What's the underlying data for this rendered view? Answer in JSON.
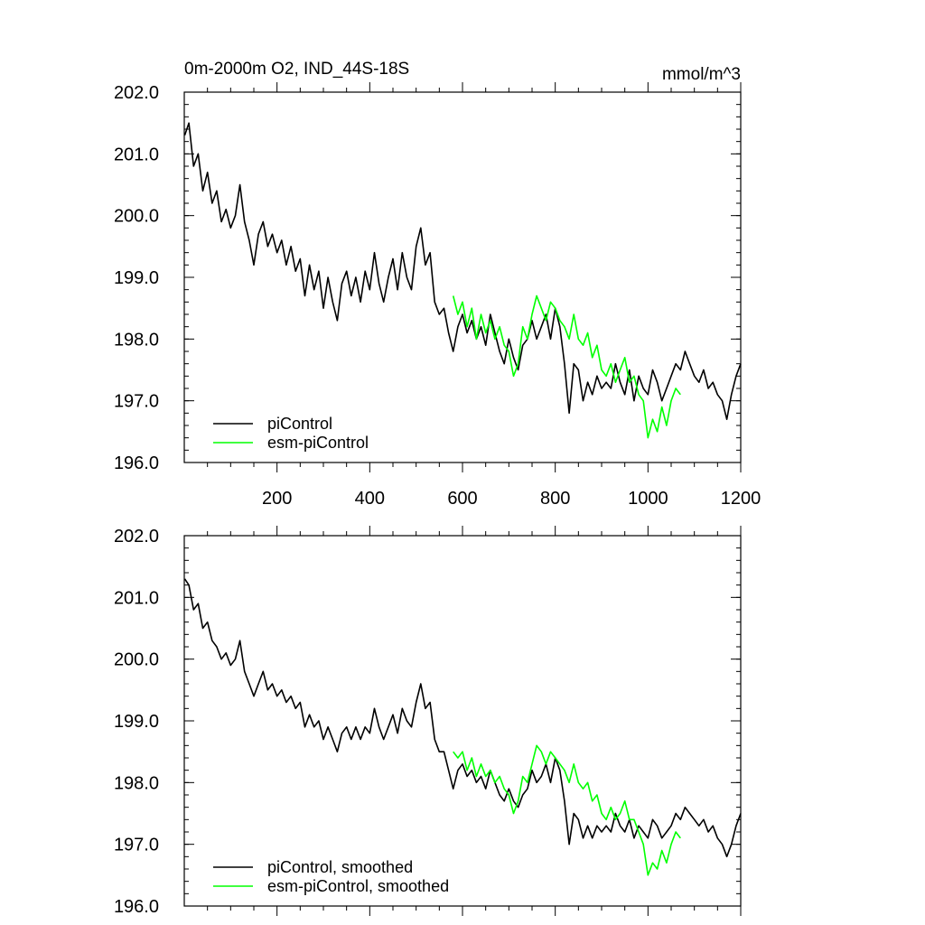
{
  "chart_data": [
    {
      "type": "line",
      "title": "0m-2000m O2, IND_44S-18S",
      "units": "mmol/m^3",
      "xlim": [
        0,
        1200
      ],
      "ylim": [
        196.0,
        202.0
      ],
      "x_ticks": [
        200,
        400,
        600,
        800,
        1000,
        1200
      ],
      "x_tick_labels": [
        "200",
        "400",
        "600",
        "800",
        "1000",
        "1200"
      ],
      "y_ticks": [
        196.0,
        197.0,
        198.0,
        199.0,
        200.0,
        201.0,
        202.0
      ],
      "y_tick_labels": [
        "196.0",
        "197.0",
        "198.0",
        "199.0",
        "200.0",
        "201.0",
        "202.0"
      ],
      "legend_position": "bottom-left",
      "grid": false,
      "series": [
        {
          "name": "piControl",
          "color": "#000000",
          "x": [
            1,
            10,
            20,
            30,
            40,
            50,
            60,
            70,
            80,
            90,
            100,
            110,
            120,
            130,
            140,
            150,
            160,
            170,
            180,
            190,
            200,
            210,
            220,
            230,
            240,
            250,
            260,
            270,
            280,
            290,
            300,
            310,
            320,
            330,
            340,
            350,
            360,
            370,
            380,
            390,
            400,
            410,
            420,
            430,
            440,
            450,
            460,
            470,
            480,
            490,
            500,
            510,
            520,
            530,
            540,
            550,
            560,
            570,
            580,
            590,
            600,
            610,
            620,
            630,
            640,
            650,
            660,
            670,
            680,
            690,
            700,
            710,
            720,
            730,
            740,
            750,
            760,
            770,
            780,
            790,
            800,
            810,
            820,
            830,
            840,
            850,
            860,
            870,
            880,
            890,
            900,
            910,
            920,
            930,
            940,
            950,
            960,
            970,
            980,
            990,
            1000,
            1010,
            1020,
            1030,
            1040,
            1050,
            1060,
            1070,
            1080,
            1090,
            1100,
            1110,
            1120,
            1130,
            1140,
            1150,
            1160,
            1170,
            1180,
            1190,
            1200
          ],
          "values": [
            201.3,
            201.5,
            200.8,
            201.0,
            200.4,
            200.7,
            200.2,
            200.4,
            199.9,
            200.1,
            199.8,
            200.0,
            200.5,
            199.9,
            199.6,
            199.2,
            199.7,
            199.9,
            199.5,
            199.7,
            199.4,
            199.6,
            199.2,
            199.5,
            199.1,
            199.3,
            198.7,
            199.2,
            198.8,
            199.1,
            198.5,
            199.0,
            198.6,
            198.3,
            198.9,
            199.1,
            198.7,
            199.0,
            198.6,
            199.1,
            198.8,
            199.4,
            198.9,
            198.6,
            199.0,
            199.3,
            198.8,
            199.4,
            199.0,
            198.8,
            199.5,
            199.8,
            199.2,
            199.4,
            198.6,
            198.4,
            198.5,
            198.1,
            197.8,
            198.2,
            198.4,
            198.1,
            198.3,
            198.0,
            198.2,
            197.9,
            198.4,
            198.1,
            197.8,
            197.6,
            198.0,
            197.7,
            197.5,
            197.9,
            198.0,
            198.3,
            198.0,
            198.2,
            198.4,
            198.0,
            198.5,
            198.2,
            197.6,
            196.8,
            197.6,
            197.5,
            197.0,
            197.3,
            197.1,
            197.4,
            197.2,
            197.3,
            197.2,
            197.6,
            197.3,
            197.1,
            197.5,
            197.0,
            197.4,
            197.2,
            197.1,
            197.5,
            197.3,
            197.0,
            197.2,
            197.4,
            197.6,
            197.5,
            197.8,
            197.6,
            197.4,
            197.3,
            197.5,
            197.2,
            197.3,
            197.1,
            197.0,
            196.7,
            197.1,
            197.4,
            197.6
          ]
        },
        {
          "name": "esm-piControl",
          "color": "#00ff00",
          "x": [
            580,
            590,
            600,
            610,
            620,
            630,
            640,
            650,
            660,
            670,
            680,
            690,
            700,
            710,
            720,
            730,
            740,
            750,
            760,
            770,
            780,
            790,
            800,
            810,
            820,
            830,
            840,
            850,
            860,
            870,
            880,
            890,
            900,
            910,
            920,
            930,
            940,
            950,
            960,
            970,
            980,
            990,
            1000,
            1010,
            1020,
            1030,
            1040,
            1050,
            1060,
            1070
          ],
          "values": [
            198.7,
            198.4,
            198.6,
            198.2,
            198.5,
            198.0,
            198.4,
            198.1,
            198.3,
            198.0,
            198.2,
            197.9,
            197.8,
            197.4,
            197.6,
            198.2,
            198.0,
            198.4,
            198.7,
            198.5,
            198.3,
            198.6,
            198.5,
            198.3,
            198.2,
            198.0,
            198.4,
            198.0,
            197.9,
            198.1,
            197.7,
            197.9,
            197.5,
            197.4,
            197.6,
            197.3,
            197.5,
            197.7,
            197.3,
            197.4,
            197.1,
            197.0,
            196.4,
            196.7,
            196.5,
            196.9,
            196.6,
            197.0,
            197.2,
            197.1
          ]
        }
      ]
    },
    {
      "type": "line",
      "xlim": [
        0,
        1200
      ],
      "ylim": [
        196.0,
        202.0
      ],
      "y_ticks": [
        196.0,
        197.0,
        198.0,
        199.0,
        200.0,
        201.0,
        202.0
      ],
      "y_tick_labels": [
        "196.0",
        "197.0",
        "198.0",
        "199.0",
        "200.0",
        "201.0",
        "202.0"
      ],
      "legend_position": "bottom-left",
      "grid": false,
      "series": [
        {
          "name": "piControl, smoothed",
          "color": "#000000",
          "x": [
            1,
            10,
            20,
            30,
            40,
            50,
            60,
            70,
            80,
            90,
            100,
            110,
            120,
            130,
            140,
            150,
            160,
            170,
            180,
            190,
            200,
            210,
            220,
            230,
            240,
            250,
            260,
            270,
            280,
            290,
            300,
            310,
            320,
            330,
            340,
            350,
            360,
            370,
            380,
            390,
            400,
            410,
            420,
            430,
            440,
            450,
            460,
            470,
            480,
            490,
            500,
            510,
            520,
            530,
            540,
            550,
            560,
            570,
            580,
            590,
            600,
            610,
            620,
            630,
            640,
            650,
            660,
            670,
            680,
            690,
            700,
            710,
            720,
            730,
            740,
            750,
            760,
            770,
            780,
            790,
            800,
            810,
            820,
            830,
            840,
            850,
            860,
            870,
            880,
            890,
            900,
            910,
            920,
            930,
            940,
            950,
            960,
            970,
            980,
            990,
            1000,
            1010,
            1020,
            1030,
            1040,
            1050,
            1060,
            1070,
            1080,
            1090,
            1100,
            1110,
            1120,
            1130,
            1140,
            1150,
            1160,
            1170,
            1180,
            1190,
            1200
          ],
          "values": [
            201.3,
            201.2,
            200.8,
            200.9,
            200.5,
            200.6,
            200.3,
            200.2,
            200.0,
            200.1,
            199.9,
            200.0,
            200.3,
            199.8,
            199.6,
            199.4,
            199.6,
            199.8,
            199.5,
            199.6,
            199.4,
            199.5,
            199.3,
            199.4,
            199.2,
            199.3,
            198.9,
            199.1,
            198.9,
            199.0,
            198.7,
            198.9,
            198.7,
            198.5,
            198.8,
            198.9,
            198.7,
            198.9,
            198.7,
            198.9,
            198.8,
            199.2,
            198.9,
            198.7,
            198.9,
            199.1,
            198.8,
            199.2,
            199.0,
            198.9,
            199.3,
            199.6,
            199.2,
            199.3,
            198.7,
            198.5,
            198.5,
            198.2,
            197.9,
            198.2,
            198.3,
            198.1,
            198.2,
            198.0,
            198.1,
            197.9,
            198.2,
            198.0,
            197.8,
            197.7,
            197.9,
            197.7,
            197.6,
            197.8,
            197.9,
            198.2,
            198.0,
            198.1,
            198.3,
            198.0,
            198.4,
            198.2,
            197.7,
            197.0,
            197.5,
            197.4,
            197.1,
            197.3,
            197.1,
            197.3,
            197.2,
            197.3,
            197.2,
            197.5,
            197.3,
            197.2,
            197.4,
            197.1,
            197.3,
            197.2,
            197.1,
            197.4,
            197.3,
            197.1,
            197.2,
            197.3,
            197.5,
            197.4,
            197.6,
            197.5,
            197.4,
            197.3,
            197.4,
            197.2,
            197.3,
            197.1,
            197.0,
            196.8,
            197.0,
            197.3,
            197.5
          ]
        },
        {
          "name": "esm-piControl, smoothed",
          "color": "#00ff00",
          "x": [
            580,
            590,
            600,
            610,
            620,
            630,
            640,
            650,
            660,
            670,
            680,
            690,
            700,
            710,
            720,
            730,
            740,
            750,
            760,
            770,
            780,
            790,
            800,
            810,
            820,
            830,
            840,
            850,
            860,
            870,
            880,
            890,
            900,
            910,
            920,
            930,
            940,
            950,
            960,
            970,
            980,
            990,
            1000,
            1010,
            1020,
            1030,
            1040,
            1050,
            1060,
            1070
          ],
          "values": [
            198.5,
            198.4,
            198.5,
            198.2,
            198.4,
            198.1,
            198.3,
            198.1,
            198.2,
            198.0,
            198.1,
            197.9,
            197.8,
            197.5,
            197.7,
            198.1,
            198.0,
            198.3,
            198.6,
            198.5,
            198.3,
            198.5,
            198.4,
            198.3,
            198.2,
            198.0,
            198.3,
            198.0,
            197.9,
            198.0,
            197.7,
            197.8,
            197.5,
            197.4,
            197.6,
            197.4,
            197.5,
            197.7,
            197.4,
            197.4,
            197.2,
            197.0,
            196.5,
            196.7,
            196.6,
            196.9,
            196.7,
            197.0,
            197.2,
            197.1
          ]
        }
      ]
    }
  ]
}
